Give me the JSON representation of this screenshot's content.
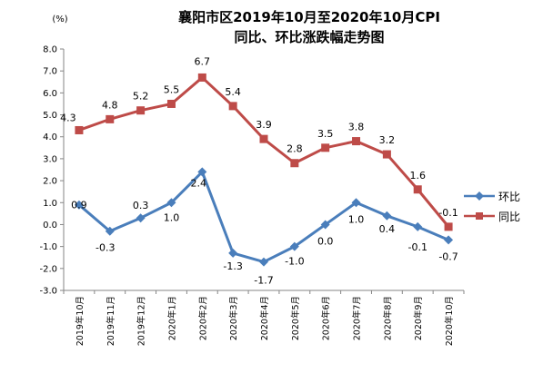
{
  "chart_data": {
    "type": "line",
    "title": "襄阳市区2019年10月至2020年10月CPI",
    "subtitle": "同比、环比涨跌幅走势图",
    "unit_label": "(%)",
    "categories": [
      "2019年10月",
      "2019年11月",
      "2019年12月",
      "2020年1月",
      "2020年2月",
      "2020年3月",
      "2020年4月",
      "2020年5月",
      "2020年6月",
      "2020年7月",
      "2020年8月",
      "2020年9月",
      "2020年10月"
    ],
    "ylim": [
      -3.0,
      8.0
    ],
    "yticks": [
      "-3.0",
      "-2.0",
      "-1.0",
      "0.0",
      "1.0",
      "2.0",
      "3.0",
      "4.0",
      "5.0",
      "6.0",
      "7.0",
      "8.0"
    ],
    "grid": false,
    "legend_position": "right",
    "series": [
      {
        "name": "环比",
        "color": "#4a7ebb",
        "marker": "diamond",
        "values": [
          0.9,
          -0.3,
          0.3,
          1.0,
          2.4,
          -1.3,
          -1.7,
          -1.0,
          0.0,
          1.0,
          0.4,
          -0.1,
          -0.7
        ],
        "labels": [
          "0.9",
          "-0.3",
          "0.3",
          "1.0",
          "2.4",
          "-1.3",
          "-1.7",
          "-1.0",
          "0.0",
          "1.0",
          "0.4",
          "-0.1",
          "-0.7"
        ]
      },
      {
        "name": "同比",
        "color": "#be4b48",
        "marker": "square",
        "values": [
          4.3,
          4.8,
          5.2,
          5.5,
          6.7,
          5.4,
          3.9,
          2.8,
          3.5,
          3.8,
          3.2,
          1.6,
          -0.1
        ],
        "labels": [
          "4.3",
          "4.8",
          "5.2",
          "5.5",
          "6.7",
          "5.4",
          "3.9",
          "2.8",
          "3.5",
          "3.8",
          "3.2",
          "1.6",
          "-0.1"
        ]
      }
    ]
  }
}
